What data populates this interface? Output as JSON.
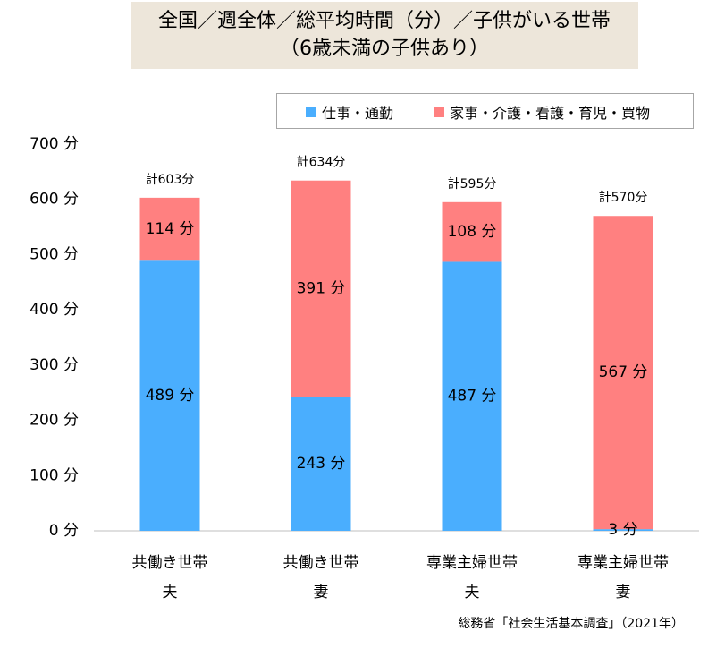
{
  "title": {
    "line1": "全国／週全体／総平均時間（分）／子供がいる世帯",
    "line2": "（6歳未満の子供あり）"
  },
  "colors": {
    "work": "#4aaefe",
    "housework": "#ff8080",
    "axis": "#bfbfbf"
  },
  "source": "総務省「社会生活基本調査」（2021年）",
  "chart_data": {
    "type": "bar",
    "stacked": true,
    "categories": [
      [
        "共働き世帯",
        "夫"
      ],
      [
        "共働き世帯",
        "妻"
      ],
      [
        "専業主婦世帯",
        "夫"
      ],
      [
        "専業主婦世帯",
        "妻"
      ]
    ],
    "series": [
      {
        "name": "仕事・通勤",
        "values": [
          489,
          243,
          487,
          3
        ],
        "labels": [
          "489 分",
          "243 分",
          "487 分",
          "3 分"
        ]
      },
      {
        "name": "家事・介護・看護・育児・買物",
        "values": [
          114,
          391,
          108,
          567
        ],
        "labels": [
          "114 分",
          "391 分",
          "108 分",
          "567 分"
        ]
      }
    ],
    "totals": [
      "計603分",
      "計634分",
      "計595分",
      "計570分"
    ],
    "yticks": [
      0,
      100,
      200,
      300,
      400,
      500,
      600,
      700
    ],
    "ytick_labels": [
      "0 分",
      "100 分",
      "200 分",
      "300 分",
      "400 分",
      "500 分",
      "600 分",
      "700 分"
    ],
    "ylim": [
      0,
      700
    ],
    "grid": false,
    "legend_position": "top-right"
  }
}
